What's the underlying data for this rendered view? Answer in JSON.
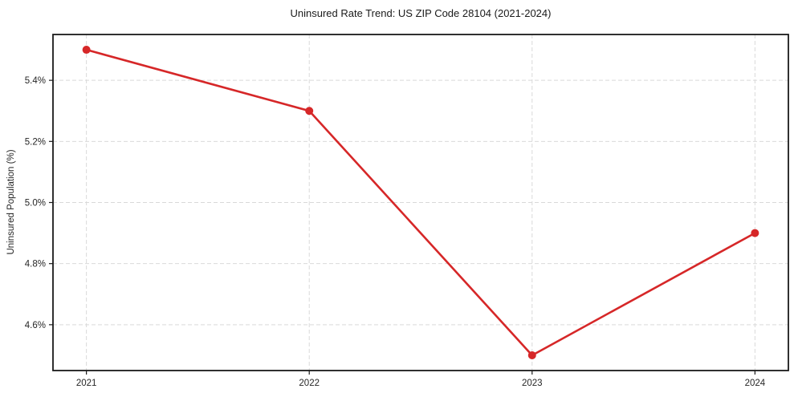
{
  "page": {
    "background": "#ffffff"
  },
  "chart_data": {
    "type": "line",
    "title": "Uninsured Rate Trend: US ZIP Code 28104 (2021-2024)",
    "xlabel": "",
    "ylabel": "Uninsured Population (%)",
    "x": [
      2021,
      2022,
      2023,
      2024
    ],
    "categories": [
      "2021",
      "2022",
      "2023",
      "2024"
    ],
    "values": [
      5.5,
      5.3,
      4.5,
      4.9
    ],
    "yticks": [
      4.6,
      4.8,
      5.0,
      5.2,
      5.4
    ],
    "ytick_labels": [
      "4.6%",
      "4.8%",
      "5.0%",
      "5.2%",
      "5.4%"
    ],
    "xlim": [
      2020.85,
      2024.15
    ],
    "ylim": [
      4.45,
      5.55
    ],
    "grid": true,
    "grid_style": "dashed",
    "legend": "none",
    "colors": {
      "line": "#d62728",
      "marker": "#d62728",
      "grid": "#d9d9d9",
      "axis": "#1a1a1a",
      "text": "#262626",
      "background": "#ffffff"
    }
  }
}
